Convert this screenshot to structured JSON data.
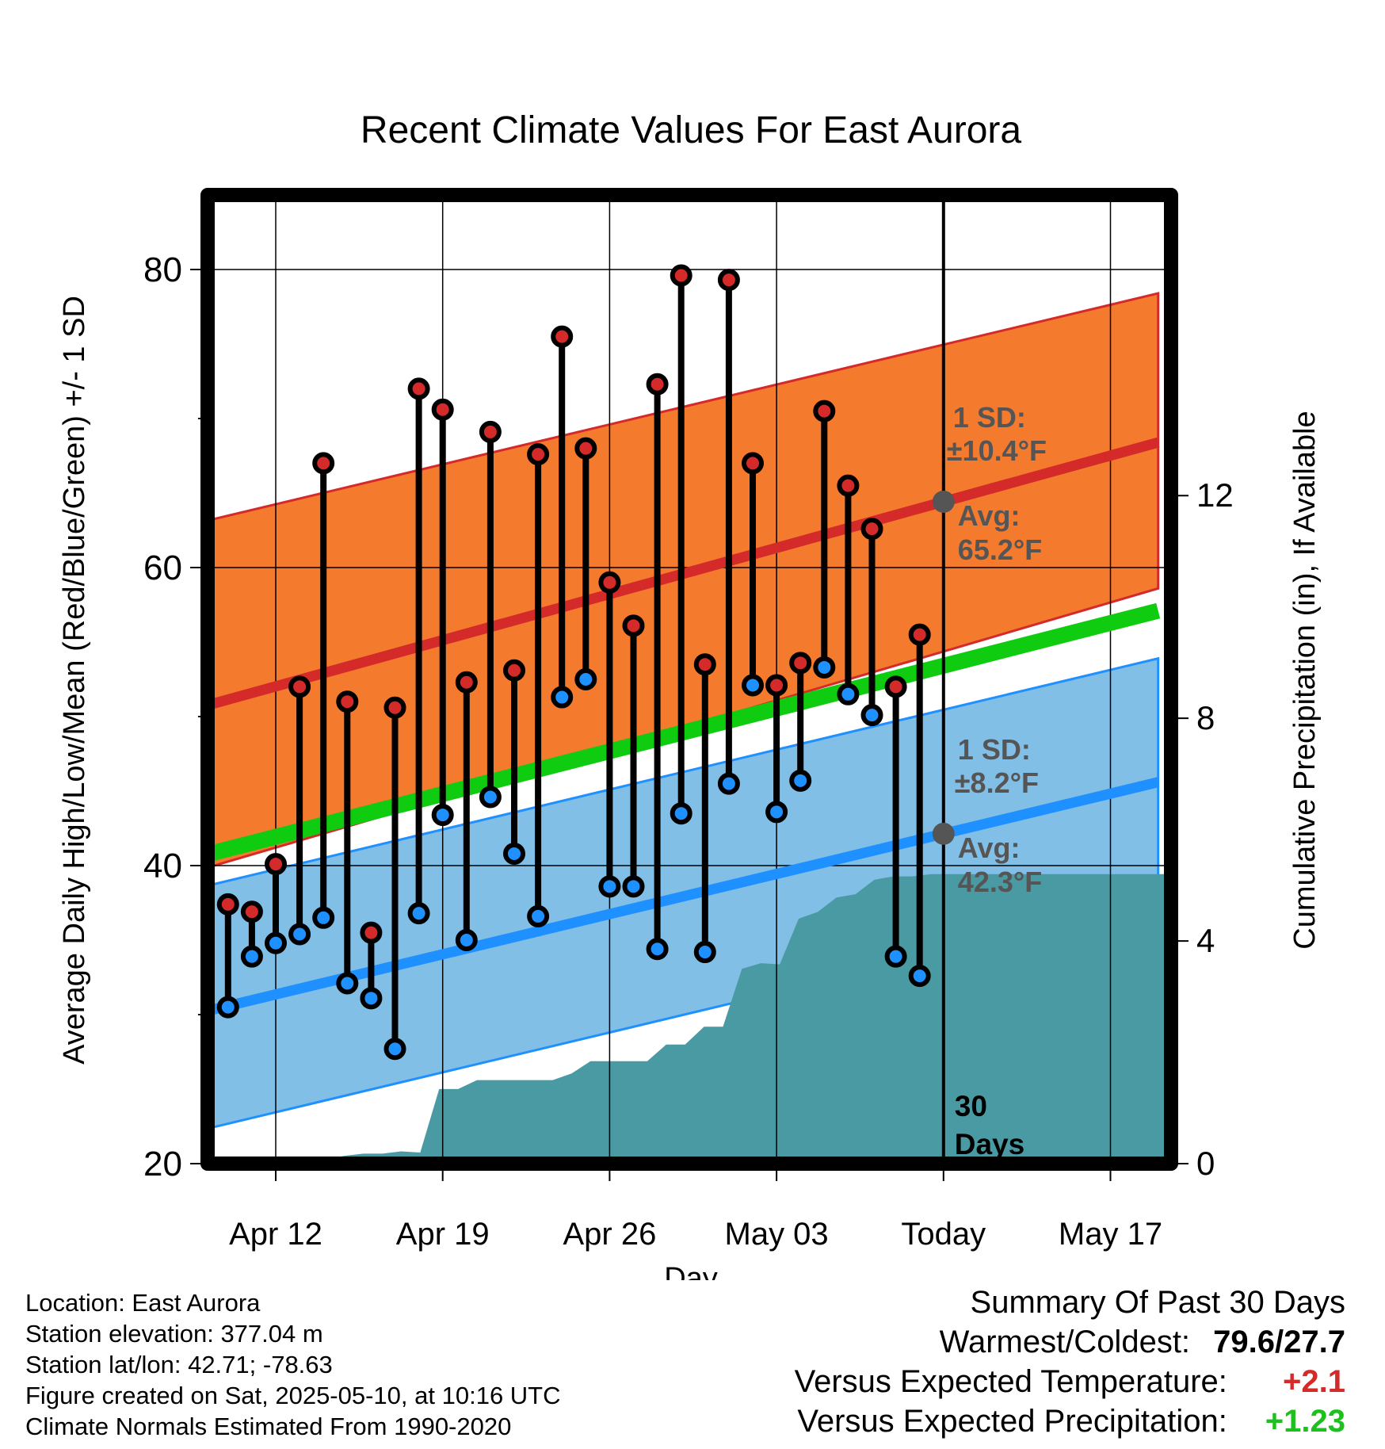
{
  "chart_data": {
    "type": "line",
    "title": "Recent Climate Values For East Aurora",
    "xlabel": "Day",
    "ylabel": "Average Daily High/Low/Mean (Red/Blue/Green) +/- 1 SD",
    "y2label": "Cumulative Precipitation (in), If Available",
    "ylim": [
      20,
      85
    ],
    "y2lim": [
      0,
      17.4
    ],
    "yticks": [
      20,
      40,
      60,
      80
    ],
    "y2ticks": [
      0,
      4,
      8,
      12
    ],
    "x_tick_labels": [
      "Apr 12",
      "Apr 19",
      "Apr 26",
      "May 03",
      "Today",
      "May 17"
    ],
    "x_dates": [
      "2025-04-10",
      "2025-04-11",
      "2025-04-12",
      "2025-04-13",
      "2025-04-14",
      "2025-04-15",
      "2025-04-16",
      "2025-04-17",
      "2025-04-18",
      "2025-04-19",
      "2025-04-20",
      "2025-04-21",
      "2025-04-22",
      "2025-04-23",
      "2025-04-24",
      "2025-04-25",
      "2025-04-26",
      "2025-04-27",
      "2025-04-28",
      "2025-04-29",
      "2025-04-30",
      "2025-05-01",
      "2025-05-02",
      "2025-05-03",
      "2025-05-04",
      "2025-05-05",
      "2025-05-06",
      "2025-05-07",
      "2025-05-08",
      "2025-05-09"
    ],
    "daily_high": [
      37.4,
      36.9,
      40.1,
      52.0,
      67.0,
      51.0,
      35.5,
      50.6,
      72.0,
      70.6,
      52.3,
      69.1,
      53.1,
      67.6,
      75.5,
      68.0,
      59.0,
      56.1,
      72.3,
      79.6,
      53.5,
      79.3,
      67.0,
      52.1,
      53.6,
      70.5,
      65.5,
      62.6,
      52.0,
      55.5
    ],
    "daily_low": [
      30.5,
      33.9,
      34.8,
      35.4,
      36.5,
      32.1,
      31.1,
      27.7,
      36.8,
      43.4,
      35.0,
      44.6,
      40.8,
      36.6,
      51.3,
      52.5,
      38.6,
      38.6,
      34.4,
      43.5,
      34.2,
      45.5,
      52.1,
      43.6,
      45.7,
      53.3,
      51.5,
      50.1,
      33.9,
      32.6
    ],
    "normals": {
      "dates": [
        "2025-04-09",
        "2025-05-19"
      ],
      "avg_high": [
        50.7,
        68.4
      ],
      "avg_high_plus_sd": [
        63.1,
        78.4
      ],
      "avg_high_minus_sd": [
        39.8,
        58.6
      ],
      "avg_mean": [
        40.7,
        57.1
      ],
      "avg_low": [
        30.2,
        45.6
      ],
      "avg_low_plus_sd": [
        38.6,
        53.9
      ],
      "avg_low_minus_sd": [
        22.3,
        37.6
      ]
    },
    "cumulative_precip_in": [
      0.0,
      0.06,
      0.06,
      0.07,
      0.07,
      0.07,
      0.08,
      0.14,
      0.18,
      0.18,
      0.22,
      0.2,
      1.34,
      1.34,
      1.5,
      1.5,
      1.5,
      1.5,
      1.5,
      1.62,
      1.84,
      1.84,
      1.84,
      1.84,
      2.14,
      2.14,
      2.46,
      2.46,
      3.5,
      3.6,
      3.58,
      4.4,
      4.52,
      4.78,
      4.84,
      5.1,
      5.16,
      5.16,
      5.2,
      5.2,
      5.2,
      5.2,
      5.2,
      5.2,
      5.2,
      5.2,
      5.2,
      5.2,
      5.2,
      5.2,
      5.2
    ],
    "today_annotations": {
      "high_sd": "±10.4°F",
      "high_avg": "65.2°F",
      "low_sd": "±8.2°F",
      "low_avg": "42.3°F",
      "sd_label": "1 SD:",
      "avg_label": "Avg:",
      "days_value": "30",
      "days_label": "Days"
    },
    "grid": true,
    "colors": {
      "high_band": "#f47a2d",
      "high_line": "#d42a2a",
      "low_band": "#82bfe6",
      "low_line": "#1e90ff",
      "mean_line": "#10cc10",
      "precip": "#4a9aa3",
      "marker_high": "#d42a2a",
      "marker_low": "#1e90ff",
      "annotation": "#555555"
    }
  },
  "footer": {
    "location": "Location: East Aurora",
    "elevation": "Station elevation: 377.04 m",
    "latlon": "Station lat/lon: 42.71; -78.63",
    "created": "Figure created on Sat, 2025-05-10, at 10:16 UTC",
    "normals": "Climate Normals Estimated From 1990-2020"
  },
  "summary": {
    "title": "Summary Of Past 30 Days",
    "warm_cold_label": "Warmest/Coldest:",
    "warm_cold_value": "79.6/27.7",
    "temp_label": "Versus Expected Temperature:",
    "temp_value": "+2.1",
    "temp_color": "#d42a2a",
    "precip_label": "Versus Expected Precipitation:",
    "precip_value": "+1.23",
    "precip_color": "#1fbf1f"
  }
}
